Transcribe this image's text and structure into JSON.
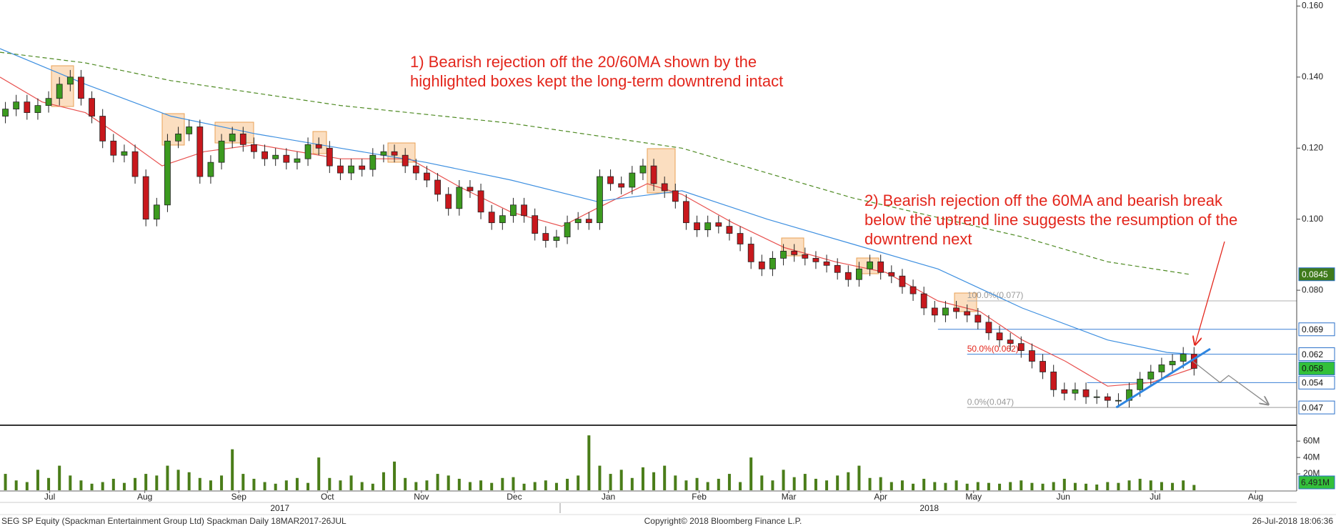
{
  "chart_data": {
    "type": "candlestick",
    "up_color": "#3c9a1f",
    "down_color": "#c8181d",
    "xlim": [
      -0.5,
      119.5
    ],
    "xticks": [
      {
        "value": 4.1,
        "label": "Jul"
      },
      {
        "value": 12.9,
        "label": "Aug"
      },
      {
        "value": 21.6,
        "label": "Sep"
      },
      {
        "value": 29.8,
        "label": "Oct"
      },
      {
        "value": 38.5,
        "label": "Nov"
      },
      {
        "value": 47.1,
        "label": "Dec"
      },
      {
        "value": 55.8,
        "label": "Jan"
      },
      {
        "value": 64.2,
        "label": "Feb"
      },
      {
        "value": 72.5,
        "label": "Mar"
      },
      {
        "value": 81.0,
        "label": "Apr"
      },
      {
        "value": 89.6,
        "label": "May"
      },
      {
        "value": 97.9,
        "label": "Jun"
      },
      {
        "value": 106.4,
        "label": "Jul"
      },
      {
        "value": 115.7,
        "label": "Aug"
      }
    ],
    "year_ticks": [
      {
        "value": 25.4,
        "label": "2017"
      },
      {
        "value": 85.5,
        "label": "2018"
      }
    ],
    "ylim": [
      0.0422,
      0.1617
    ],
    "yticks": [
      {
        "value": 0.16,
        "label": "0.160"
      },
      {
        "value": 0.14,
        "label": "0.140"
      },
      {
        "value": 0.12,
        "label": "0.120"
      },
      {
        "value": 0.1,
        "label": "0.100"
      },
      {
        "value": 0.08,
        "label": "0.080"
      }
    ],
    "open": [
      0.129,
      0.131,
      0.133,
      0.13,
      0.132,
      0.134,
      0.138,
      0.14,
      0.134,
      0.129,
      0.122,
      0.118,
      0.119,
      0.112,
      0.1,
      0.104,
      0.122,
      0.124,
      0.126,
      0.112,
      0.116,
      0.122,
      0.124,
      0.121,
      0.119,
      0.117,
      0.118,
      0.116,
      0.117,
      0.121,
      0.12,
      0.115,
      0.113,
      0.115,
      0.114,
      0.118,
      0.119,
      0.118,
      0.115,
      0.113,
      0.111,
      0.107,
      0.103,
      0.109,
      0.108,
      0.102,
      0.099,
      0.101,
      0.104,
      0.101,
      0.096,
      0.094,
      0.095,
      0.099,
      0.1,
      0.099,
      0.112,
      0.11,
      0.109,
      0.113,
      0.115,
      0.11,
      0.108,
      0.105,
      0.099,
      0.097,
      0.099,
      0.098,
      0.096,
      0.093,
      0.088,
      0.086,
      0.089,
      0.091,
      0.09,
      0.089,
      0.088,
      0.087,
      0.085,
      0.083,
      0.086,
      0.088,
      0.085,
      0.084,
      0.081,
      0.079,
      0.075,
      0.073,
      0.075,
      0.074,
      0.073,
      0.071,
      0.068,
      0.066,
      0.065,
      0.063,
      0.06,
      0.057,
      0.052,
      0.051,
      0.052,
      0.05,
      0.05,
      0.049,
      0.049,
      0.052,
      0.055,
      0.057,
      0.059,
      0.06,
      0.062
    ],
    "high": [
      0.133,
      0.135,
      0.135,
      0.134,
      0.136,
      0.14,
      0.142,
      0.142,
      0.136,
      0.131,
      0.124,
      0.121,
      0.121,
      0.114,
      0.106,
      0.124,
      0.126,
      0.128,
      0.128,
      0.118,
      0.124,
      0.126,
      0.126,
      0.123,
      0.121,
      0.12,
      0.12,
      0.119,
      0.123,
      0.123,
      0.122,
      0.117,
      0.117,
      0.117,
      0.12,
      0.121,
      0.121,
      0.12,
      0.117,
      0.115,
      0.113,
      0.109,
      0.111,
      0.111,
      0.11,
      0.104,
      0.103,
      0.106,
      0.106,
      0.103,
      0.098,
      0.097,
      0.101,
      0.102,
      0.102,
      0.114,
      0.114,
      0.112,
      0.115,
      0.117,
      0.117,
      0.112,
      0.11,
      0.107,
      0.101,
      0.101,
      0.101,
      0.1,
      0.098,
      0.095,
      0.09,
      0.091,
      0.093,
      0.093,
      0.092,
      0.091,
      0.09,
      0.089,
      0.087,
      0.088,
      0.09,
      0.09,
      0.087,
      0.086,
      0.083,
      0.081,
      0.077,
      0.077,
      0.077,
      0.076,
      0.075,
      0.073,
      0.07,
      0.068,
      0.067,
      0.065,
      0.062,
      0.059,
      0.054,
      0.054,
      0.054,
      0.052,
      0.051,
      0.051,
      0.054,
      0.057,
      0.059,
      0.061,
      0.062,
      0.064,
      0.064
    ],
    "low": [
      0.127,
      0.129,
      0.128,
      0.128,
      0.13,
      0.132,
      0.136,
      0.132,
      0.127,
      0.12,
      0.116,
      0.116,
      0.11,
      0.098,
      0.098,
      0.102,
      0.12,
      0.122,
      0.11,
      0.11,
      0.114,
      0.12,
      0.119,
      0.117,
      0.115,
      0.115,
      0.114,
      0.114,
      0.115,
      0.118,
      0.113,
      0.111,
      0.111,
      0.112,
      0.112,
      0.116,
      0.116,
      0.113,
      0.111,
      0.109,
      0.105,
      0.101,
      0.101,
      0.106,
      0.1,
      0.097,
      0.097,
      0.099,
      0.099,
      0.094,
      0.092,
      0.092,
      0.093,
      0.097,
      0.097,
      0.097,
      0.108,
      0.107,
      0.107,
      0.111,
      0.108,
      0.106,
      0.103,
      0.097,
      0.095,
      0.095,
      0.096,
      0.094,
      0.091,
      0.086,
      0.084,
      0.084,
      0.087,
      0.088,
      0.087,
      0.086,
      0.085,
      0.083,
      0.081,
      0.081,
      0.084,
      0.083,
      0.082,
      0.079,
      0.077,
      0.073,
      0.071,
      0.071,
      0.072,
      0.071,
      0.069,
      0.066,
      0.064,
      0.063,
      0.061,
      0.058,
      0.055,
      0.05,
      0.049,
      0.049,
      0.048,
      0.048,
      0.047,
      0.047,
      0.047,
      0.05,
      0.053,
      0.055,
      0.057,
      0.058,
      0.056
    ],
    "close": [
      0.131,
      0.133,
      0.13,
      0.132,
      0.134,
      0.138,
      0.14,
      0.134,
      0.129,
      0.122,
      0.118,
      0.119,
      0.112,
      0.1,
      0.104,
      0.122,
      0.124,
      0.126,
      0.112,
      0.116,
      0.122,
      0.124,
      0.121,
      0.119,
      0.117,
      0.118,
      0.116,
      0.117,
      0.121,
      0.12,
      0.115,
      0.113,
      0.115,
      0.114,
      0.118,
      0.119,
      0.118,
      0.115,
      0.113,
      0.111,
      0.107,
      0.103,
      0.109,
      0.108,
      0.102,
      0.099,
      0.101,
      0.104,
      0.101,
      0.096,
      0.094,
      0.095,
      0.099,
      0.1,
      0.099,
      0.112,
      0.11,
      0.109,
      0.113,
      0.115,
      0.11,
      0.108,
      0.105,
      0.099,
      0.097,
      0.099,
      0.098,
      0.096,
      0.093,
      0.088,
      0.086,
      0.089,
      0.091,
      0.09,
      0.089,
      0.088,
      0.087,
      0.085,
      0.083,
      0.086,
      0.088,
      0.085,
      0.084,
      0.081,
      0.079,
      0.075,
      0.073,
      0.075,
      0.074,
      0.073,
      0.071,
      0.068,
      0.066,
      0.065,
      0.063,
      0.06,
      0.057,
      0.052,
      0.051,
      0.052,
      0.05,
      0.05,
      0.049,
      0.049,
      0.052,
      0.055,
      0.057,
      0.059,
      0.06,
      0.062,
      0.058
    ],
    "moving_averages": [
      {
        "color": "#e8514f",
        "dash": false,
        "x": [
          -0.5,
          3.4,
          7.4,
          11.3,
          14.5,
          18.4,
          23.2,
          31.0,
          37.4,
          42.1,
          46.8,
          51.5,
          54.7,
          59.4,
          62.6,
          67.3,
          72.1,
          76.8,
          81.5,
          86.3,
          90.2,
          94.1,
          98.1,
          102.0,
          106.0,
          109.9
        ],
        "values": [
          0.14,
          0.133,
          0.13,
          0.122,
          0.115,
          0.119,
          0.121,
          0.117,
          0.117,
          0.109,
          0.102,
          0.098,
          0.103,
          0.11,
          0.107,
          0.099,
          0.092,
          0.088,
          0.085,
          0.077,
          0.074,
          0.066,
          0.06,
          0.053,
          0.054,
          0.058
        ]
      },
      {
        "color": "#3d8fe0",
        "dash": false,
        "x": [
          -0.5,
          7.4,
          15.3,
          23.2,
          31.0,
          38.9,
          46.8,
          54.7,
          62.6,
          70.5,
          78.4,
          86.3,
          94.1,
          102.0,
          107.5,
          109.9
        ],
        "values": [
          0.148,
          0.138,
          0.129,
          0.124,
          0.12,
          0.116,
          0.111,
          0.105,
          0.108,
          0.1,
          0.093,
          0.086,
          0.075,
          0.066,
          0.0625,
          0.062
        ]
      },
      {
        "color": "#4e8a22",
        "dash": true,
        "x": [
          -0.5,
          7.4,
          15.3,
          31.0,
          46.8,
          62.6,
          78.4,
          94.1,
          102.0,
          109.5
        ],
        "values": [
          0.147,
          0.144,
          0.139,
          0.132,
          0.127,
          0.12,
          0.106,
          0.095,
          0.088,
          0.0845
        ]
      }
    ],
    "levels": [
      {
        "value": 0.077,
        "from": 89.0,
        "color": "#b0b0b0",
        "label": "100.0%(0.077)",
        "label_color": "#9a9a9a"
      },
      {
        "value": 0.069,
        "from": 86.3,
        "color": "#3a7fd5"
      },
      {
        "value": 0.062,
        "from": 89.0,
        "color": "#3a7fd5",
        "label": "50.0%(0.062)",
        "label_color": "#e3261c"
      },
      {
        "value": 0.054,
        "from": 100.1,
        "color": "#3a7fd5"
      },
      {
        "value": 0.047,
        "from": 89.0,
        "color": "#9a9a9a",
        "label": "0.0%(0.047)",
        "label_color": "#9a9a9a"
      }
    ],
    "badges": [
      {
        "value": 0.0845,
        "color": "#3f7a1c",
        "text_color": "#ffffff"
      },
      {
        "value": 0.069,
        "color": "#ffffff",
        "text_color": "#111111"
      },
      {
        "value": 0.062,
        "color": "#ffffff",
        "text_color": "#111111"
      },
      {
        "value": 0.058,
        "color": "#33c03a",
        "text_color": "#111111"
      },
      {
        "value": 0.054,
        "color": "#ffffff",
        "text_color": "#111111"
      },
      {
        "value": 0.047,
        "color": "#ffffff",
        "text_color": "#111111"
      }
    ],
    "trendline": {
      "color": "#2f86e0",
      "x": [
        102.8,
        111.5
      ],
      "values": [
        0.047,
        0.0635
      ]
    },
    "projection": {
      "color": "#8a8a8a",
      "x": [
        109.9,
        112.4,
        113.2,
        116.8
      ],
      "values": [
        0.06,
        0.054,
        0.056,
        0.048
      ]
    },
    "annotations": [
      [
        "1) Bearish rejection off the 20/60MA shown by the",
        "highlighted boxes kept the long-term downtrend intact"
      ],
      [
        "2) Bearish rejection off the 60MA and bearish break",
        "below the uptrend line suggests the resumption of the",
        "downtrend next"
      ]
    ],
    "volume": {
      "color": "#4a7d19",
      "ylim": [
        0,
        75
      ],
      "yticks": [
        {
          "value": 20,
          "label": "20M"
        },
        {
          "value": 40,
          "label": "40M"
        },
        {
          "value": 60,
          "label": "60M"
        }
      ],
      "values": [
        20,
        12,
        10,
        25,
        15,
        30,
        18,
        12,
        8,
        10,
        14,
        9,
        15,
        20,
        18,
        30,
        25,
        22,
        15,
        12,
        18,
        50,
        20,
        14,
        10,
        8,
        12,
        15,
        9,
        40,
        15,
        12,
        18,
        10,
        8,
        22,
        35,
        15,
        10,
        12,
        20,
        18,
        14,
        10,
        12,
        9,
        15,
        16,
        8,
        10,
        12,
        9,
        14,
        18,
        67,
        30,
        20,
        25,
        15,
        28,
        22,
        30,
        18,
        12,
        15,
        10,
        14,
        20,
        10,
        40,
        18,
        12,
        25,
        16,
        20,
        14,
        12,
        18,
        22,
        30,
        15,
        16,
        10,
        12,
        8,
        14,
        10,
        9,
        12,
        8,
        10,
        9,
        8,
        10,
        12,
        9,
        8,
        10,
        14,
        9,
        8,
        7,
        10,
        9,
        12,
        14,
        12,
        10,
        9,
        12,
        6.491
      ],
      "last_label": "6.491M"
    },
    "footer": {
      "left": "SEG SP Equity (Spackman Entertainment Group Ltd) Spackman  Daily 18MAR2017-26JUL",
      "center": "Copyright© 2018 Bloomberg Finance L.P.",
      "right": "26-Jul-2018 18:06:36"
    }
  }
}
